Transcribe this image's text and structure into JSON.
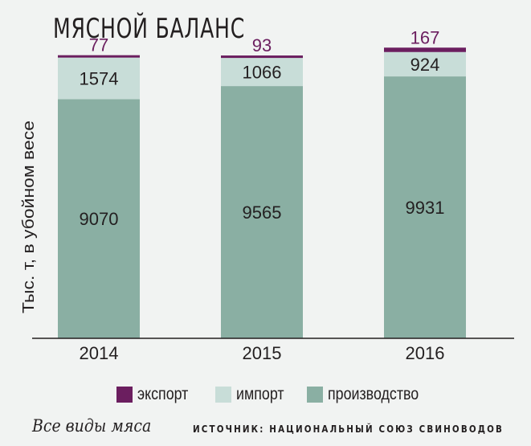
{
  "title": "МЯСНОЙ БАЛАНС",
  "chart_data": {
    "type": "bar",
    "stacked": true,
    "title": "МЯСНОЙ БАЛАНС",
    "ylabel": "Тыс. т, в убойном весе",
    "xlabel": "",
    "categories": [
      "2014",
      "2015",
      "2016"
    ],
    "ylim": [
      0,
      11000
    ],
    "grid": false,
    "legend_position": "bottom",
    "series": [
      {
        "name": "производство",
        "color": "#8aafa3",
        "values": [
          9070,
          9565,
          9931
        ]
      },
      {
        "name": "импорт",
        "color": "#c8ddd8",
        "values": [
          1574,
          1066,
          924
        ]
      },
      {
        "name": "экспорт",
        "color": "#6b1e5f",
        "values": [
          77,
          93,
          167
        ]
      }
    ]
  },
  "legend": [
    {
      "label": "экспорт",
      "color": "#6b1e5f"
    },
    {
      "label": "импорт",
      "color": "#c8ddd8"
    },
    {
      "label": "производство",
      "color": "#8aafa3"
    }
  ],
  "caption": "Все виды мяса",
  "source": "ИСТОЧНИК: НАЦИОНАЛЬНЫЙ СОЮЗ СВИНОВОДОВ"
}
